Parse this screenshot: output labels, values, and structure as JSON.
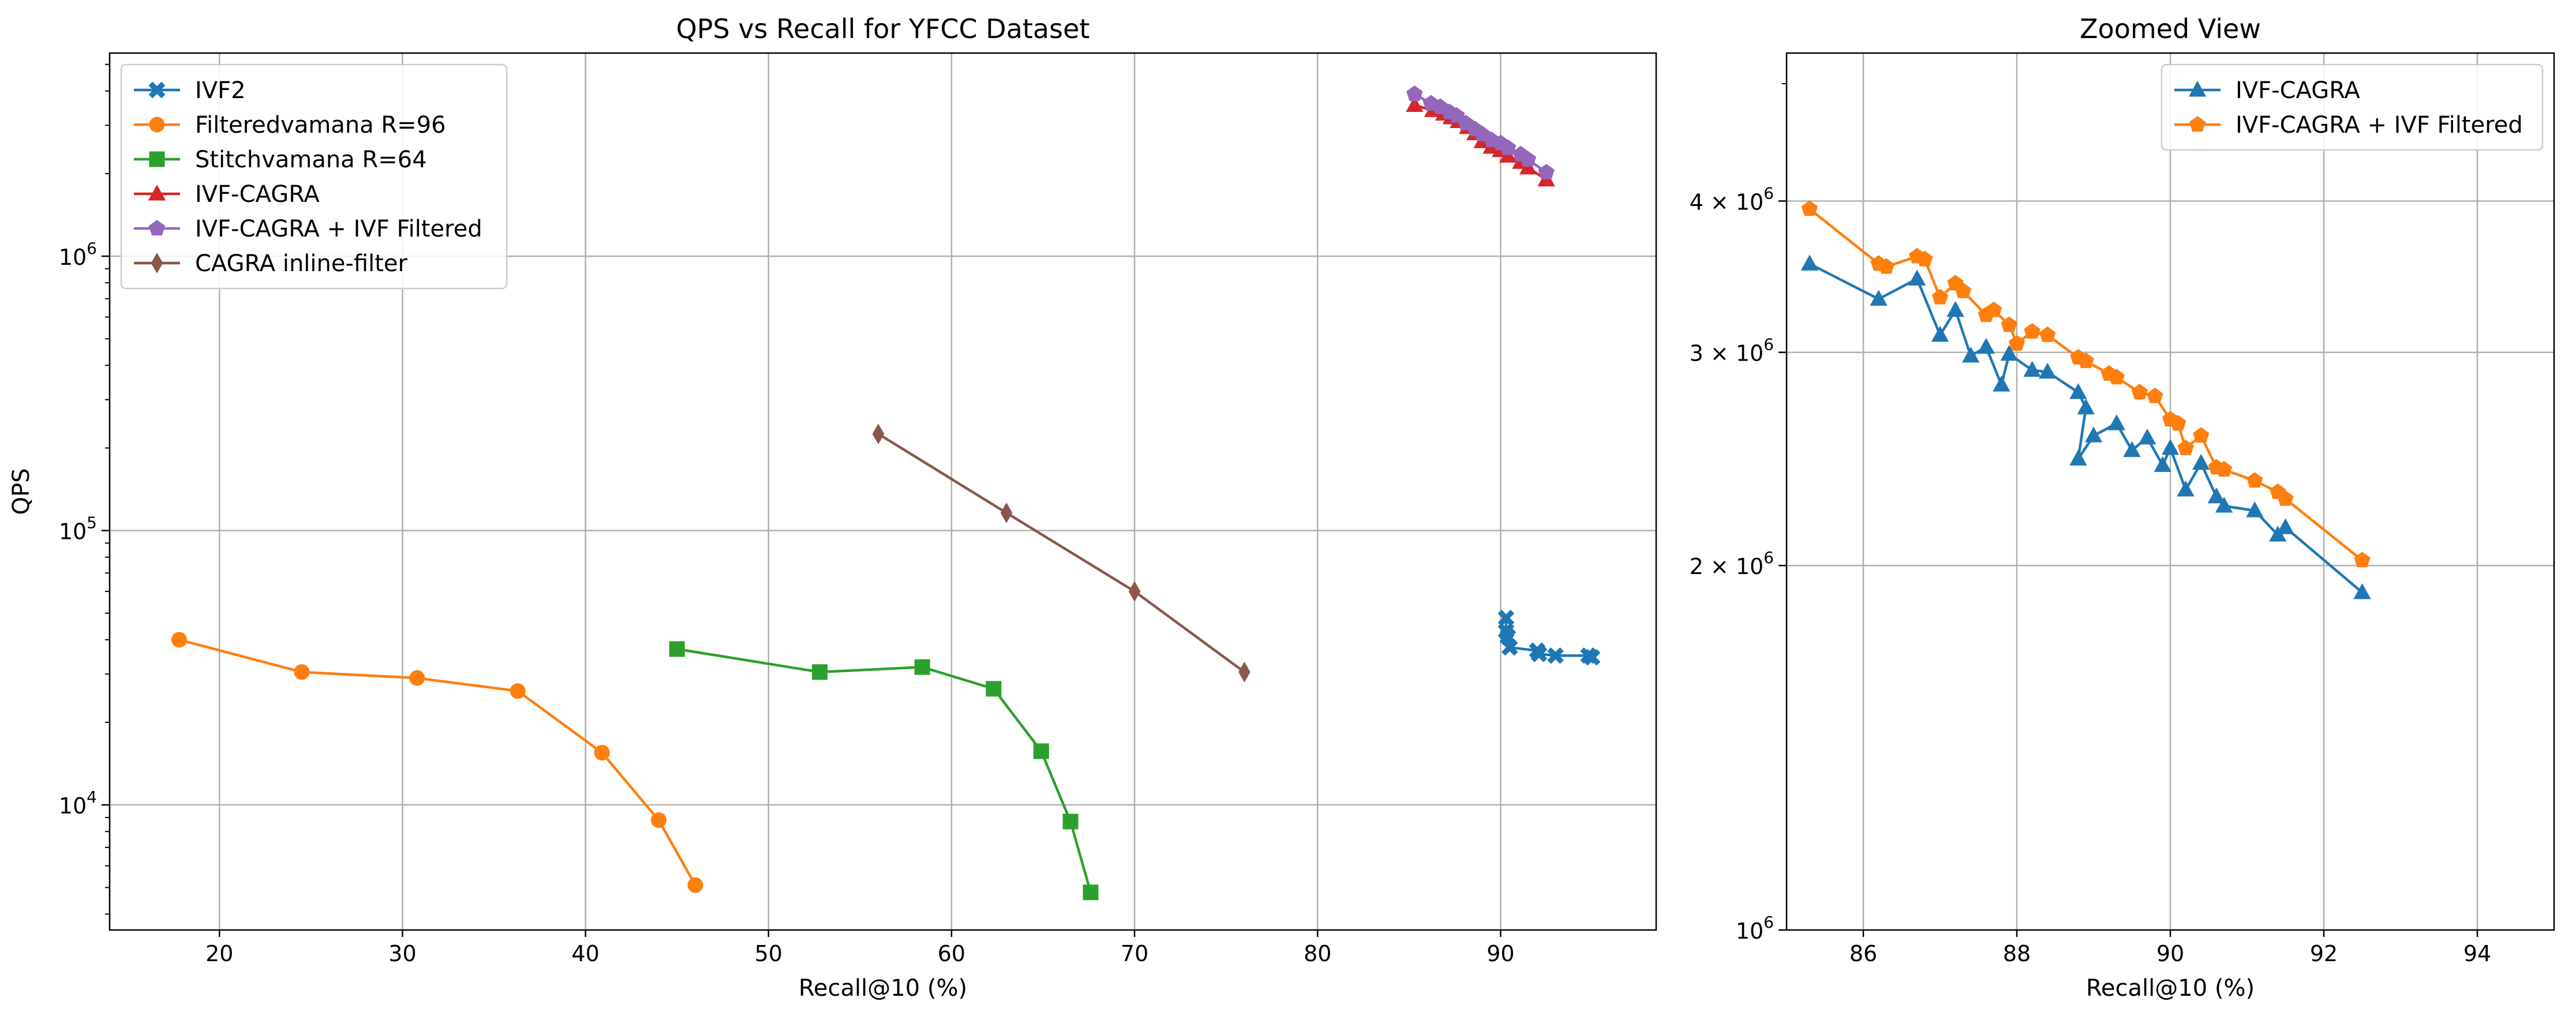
{
  "chart_data": [
    {
      "type": "line",
      "title": "QPS vs Recall for YFCC Dataset",
      "xlabel": "Recall@10 (%)",
      "ylabel": "QPS",
      "xlim": [
        14,
        98.5
      ],
      "ylim": [
        3500,
        5500000
      ],
      "yscale": "log",
      "grid": true,
      "legend_position": "upper-left",
      "x_ticks": [
        "20",
        "30",
        "40",
        "50",
        "60",
        "70",
        "80",
        "90"
      ],
      "y_ticks": [
        {
          "base": "10",
          "exp": "4",
          "value": 10000
        },
        {
          "base": "10",
          "exp": "5",
          "value": 100000
        },
        {
          "base": "10",
          "exp": "6",
          "value": 1000000
        }
      ],
      "series": [
        {
          "name": "IVF2",
          "color": "#1f77b4",
          "marker": "X",
          "x": [
            90.3,
            90.3,
            90.4,
            90.5,
            92.0,
            92.1,
            93.0,
            94.8,
            95.0
          ],
          "y": [
            48000,
            43000,
            41000,
            37500,
            36500,
            35500,
            35000,
            35000,
            34500
          ]
        },
        {
          "name": "Filteredvamana R=96",
          "color": "#ff7f0e",
          "marker": "o",
          "x": [
            17.8,
            24.5,
            30.8,
            36.3,
            40.9,
            44.0,
            46.0
          ],
          "y": [
            40000,
            30500,
            29000,
            26000,
            15500,
            8800,
            5100
          ]
        },
        {
          "name": "Stitchvamana R=64",
          "color": "#2ca02c",
          "marker": "s",
          "x": [
            45.0,
            52.8,
            58.4,
            62.3,
            64.9,
            66.5,
            67.6
          ],
          "y": [
            37000,
            30500,
            31800,
            26500,
            15700,
            8700,
            4800
          ]
        },
        {
          "name": "IVF-CAGRA",
          "color": "#d62728",
          "marker": "^",
          "x": [
            85.3,
            86.3,
            86.9,
            87.3,
            87.7,
            88.2,
            88.6,
            89.0,
            89.5,
            90.0,
            90.4,
            91.1,
            91.5,
            92.5
          ],
          "y": [
            3550000,
            3400000,
            3300000,
            3200000,
            3100000,
            2950000,
            2800000,
            2620000,
            2500000,
            2430000,
            2320000,
            2200000,
            2100000,
            1900000
          ]
        },
        {
          "name": "IVF-CAGRA + IVF Filtered",
          "color": "#9467bd",
          "marker": "p",
          "x": [
            85.3,
            86.2,
            86.7,
            87.2,
            87.6,
            88.1,
            88.6,
            89.0,
            89.5,
            90.0,
            90.4,
            91.1,
            91.5,
            92.5
          ],
          "y": [
            3900000,
            3600000,
            3500000,
            3350000,
            3250000,
            3050000,
            2900000,
            2780000,
            2650000,
            2580000,
            2480000,
            2350000,
            2250000,
            2020000
          ]
        },
        {
          "name": "CAGRA inline-filter",
          "color": "#8c564b",
          "marker": "d",
          "x": [
            56.0,
            63.0,
            70.0,
            76.0
          ],
          "y": [
            225000,
            116000,
            60000,
            30500
          ]
        }
      ]
    },
    {
      "type": "line",
      "title": "Zoomed View",
      "xlabel": "Recall@10 (%)",
      "ylabel": "",
      "xlim": [
        85,
        95
      ],
      "ylim": [
        1000000,
        5300000
      ],
      "yscale": "log",
      "grid": true,
      "legend_position": "upper-right",
      "x_ticks": [
        "86",
        "88",
        "90",
        "92",
        "94"
      ],
      "y_ticks": [
        {
          "base": "10",
          "exp": "6",
          "value": 1000000,
          "mult": ""
        },
        {
          "base": "10",
          "exp": "6",
          "value": 2000000,
          "mult": "2 × "
        },
        {
          "base": "10",
          "exp": "6",
          "value": 3000000,
          "mult": "3 × "
        },
        {
          "base": "10",
          "exp": "6",
          "value": 4000000,
          "mult": "4 × "
        }
      ],
      "series": [
        {
          "name": "IVF-CAGRA",
          "color": "#1f77b4",
          "marker": "^",
          "x": [
            85.3,
            86.2,
            86.7,
            87.0,
            87.2,
            87.4,
            87.6,
            87.8,
            87.9,
            88.2,
            88.4,
            88.8,
            88.9,
            88.8,
            89.0,
            89.3,
            89.5,
            89.7,
            89.9,
            90.0,
            90.2,
            90.4,
            90.6,
            90.7,
            91.1,
            91.4,
            91.5,
            92.5
          ],
          "y": [
            3550000,
            3320000,
            3450000,
            3100000,
            3250000,
            2980000,
            3030000,
            2820000,
            2990000,
            2900000,
            2890000,
            2780000,
            2700000,
            2450000,
            2560000,
            2620000,
            2490000,
            2550000,
            2420000,
            2500000,
            2310000,
            2430000,
            2280000,
            2240000,
            2220000,
            2120000,
            2150000,
            1900000
          ]
        },
        {
          "name": "IVF-CAGRA + IVF Filtered",
          "color": "#ff7f0e",
          "marker": "p",
          "x": [
            85.3,
            86.2,
            86.3,
            86.7,
            86.8,
            87.0,
            87.2,
            87.3,
            87.6,
            87.7,
            87.9,
            88.0,
            88.2,
            88.4,
            88.8,
            88.9,
            89.2,
            89.3,
            89.6,
            89.8,
            90.0,
            90.1,
            90.2,
            90.4,
            90.6,
            90.7,
            91.1,
            91.4,
            91.5,
            92.5
          ],
          "y": [
            3940000,
            3550000,
            3530000,
            3600000,
            3580000,
            3330000,
            3420000,
            3370000,
            3220000,
            3250000,
            3160000,
            3050000,
            3120000,
            3100000,
            2970000,
            2950000,
            2880000,
            2860000,
            2780000,
            2760000,
            2640000,
            2620000,
            2500000,
            2560000,
            2410000,
            2400000,
            2350000,
            2300000,
            2270000,
            2020000
          ]
        }
      ]
    }
  ]
}
